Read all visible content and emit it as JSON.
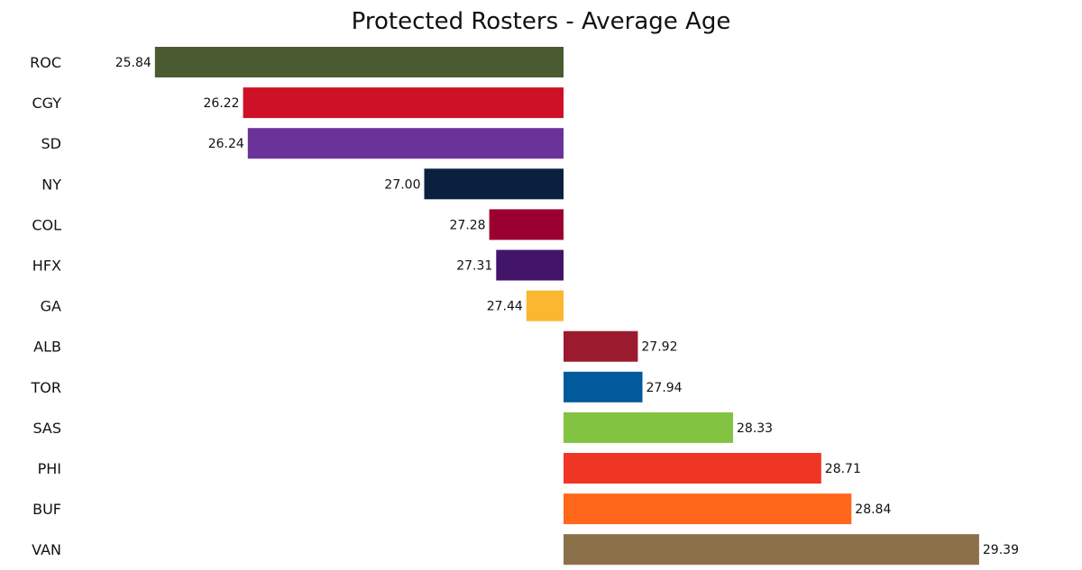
{
  "chart_data": {
    "type": "bar",
    "orientation": "horizontal",
    "title": "Protected Rosters - Average Age",
    "xlabel": "",
    "ylabel": "",
    "baseline": 27.6,
    "xlim": [
      25.6,
      29.6
    ],
    "grid": false,
    "categories": [
      "ROC",
      "CGY",
      "SD",
      "NY",
      "COL",
      "HFX",
      "GA",
      "ALB",
      "TOR",
      "SAS",
      "PHI",
      "BUF",
      "VAN"
    ],
    "values": [
      25.84,
      26.22,
      26.24,
      27.0,
      27.28,
      27.31,
      27.44,
      27.92,
      27.94,
      28.33,
      28.71,
      28.84,
      29.39
    ],
    "labels": [
      "25.84",
      "26.22",
      "26.24",
      "27.00",
      "27.28",
      "27.31",
      "27.44",
      "27.92",
      "27.94",
      "28.33",
      "28.71",
      "28.84",
      "29.39"
    ],
    "colors": [
      "#4b5b31",
      "#ce1126",
      "#6a3399",
      "#0b1f3f",
      "#9b0030",
      "#42156b",
      "#fbb72f",
      "#9c1a2e",
      "#005a9c",
      "#82c341",
      "#ef3524",
      "#ff671b",
      "#8b714a"
    ]
  }
}
